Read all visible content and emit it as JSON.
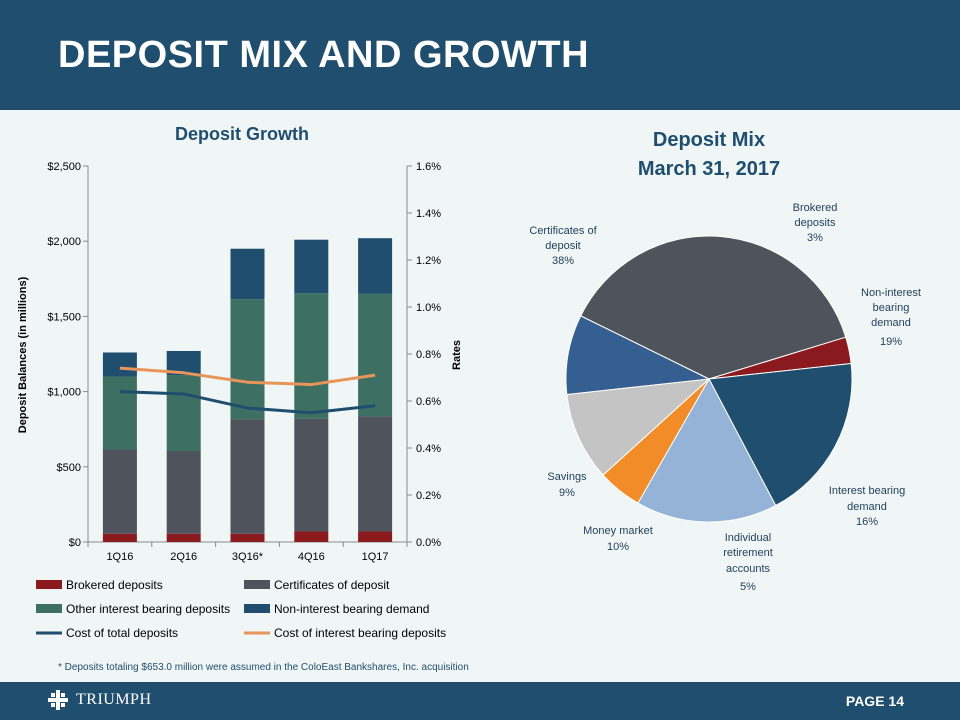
{
  "slide": {
    "title": "DEPOSIT MIX AND GROWTH",
    "page_label": "PAGE 14",
    "logo_text": "TRIUMPH",
    "footnote": "* Deposits totaling $653.0 million were assumed in the ColoEast Bankshares, Inc. acquisition"
  },
  "colors": {
    "header": "#1f4e6e",
    "brokered": "#8b1a1f",
    "cd": "#4f535c",
    "other_ib": "#3d7063",
    "nib": "#1f4e6e",
    "cost_total": "#1f4e6e",
    "cost_ib": "#e8955a",
    "ib_demand": "#95b3d7",
    "ira": "#f28c28",
    "money_market": "#c4c4c4",
    "savings": "#355f91"
  },
  "chart_data": [
    {
      "type": "bar",
      "subtype": "stacked-with-lines",
      "title": "Deposit Growth",
      "ylabel": "Deposit Balances (in millions)",
      "y2label": "Rates",
      "categories": [
        "1Q16",
        "2Q16",
        "3Q16*",
        "4Q16",
        "1Q17"
      ],
      "ylim": [
        0,
        2500
      ],
      "y_ticks": [
        0,
        500,
        1000,
        1500,
        2000,
        2500
      ],
      "y_tick_labels": [
        "$0",
        "$500",
        "$1,000",
        "$1,500",
        "$2,000",
        "$2,500"
      ],
      "y2lim": [
        0,
        1.6
      ],
      "y2_ticks": [
        0,
        0.2,
        0.4,
        0.6,
        0.8,
        1.0,
        1.2,
        1.4,
        1.6
      ],
      "y2_tick_labels": [
        "0.0%",
        "0.2%",
        "0.4%",
        "0.6%",
        "0.8%",
        "1.0%",
        "1.2%",
        "1.4%",
        "1.6%"
      ],
      "series": [
        {
          "name": "Brokered deposits",
          "kind": "bar",
          "color_key": "brokered",
          "values": [
            55,
            55,
            55,
            70,
            70
          ]
        },
        {
          "name": "Certificates of deposit",
          "kind": "bar",
          "color_key": "cd",
          "values": [
            560,
            550,
            760,
            750,
            765
          ]
        },
        {
          "name": "Other interest bearing deposits",
          "kind": "bar",
          "color_key": "other_ib",
          "values": [
            485,
            505,
            800,
            835,
            815
          ]
        },
        {
          "name": "Non-interest bearing demand",
          "kind": "bar",
          "color_key": "nib",
          "values": [
            160,
            160,
            335,
            355,
            370
          ]
        },
        {
          "name": "Cost of total deposits",
          "kind": "line",
          "axis": "y2",
          "color_key": "cost_total",
          "values": [
            0.64,
            0.63,
            0.57,
            0.55,
            0.58
          ]
        },
        {
          "name": "Cost of interest bearing deposits",
          "kind": "line",
          "axis": "y2",
          "color_key": "cost_ib",
          "values": [
            0.74,
            0.72,
            0.68,
            0.67,
            0.71
          ]
        }
      ],
      "legend": [
        "Brokered deposits",
        "Certificates of deposit",
        "Other interest bearing deposits",
        "Non-interest bearing demand",
        "Cost of total deposits",
        "Cost of interest bearing deposits"
      ]
    },
    {
      "type": "pie",
      "title": "Deposit Mix",
      "subtitle": "March 31, 2017",
      "slices": [
        {
          "name": "Certificates of deposit",
          "pct_label": "38%",
          "value": 38,
          "color_key": "cd"
        },
        {
          "name": "Brokered deposits",
          "pct_label": "3%",
          "value": 3,
          "color_key": "brokered"
        },
        {
          "name": "Non-interest bearing demand",
          "pct_label": "19%",
          "value": 19,
          "color_key": "nib"
        },
        {
          "name": "Interest bearing demand",
          "pct_label": "16%",
          "value": 16,
          "color_key": "ib_demand"
        },
        {
          "name": "Individual retirement accounts",
          "pct_label": "5%",
          "value": 5,
          "color_key": "ira"
        },
        {
          "name": "Money market",
          "pct_label": "10%",
          "value": 10,
          "color_key": "money_market"
        },
        {
          "name": "Savings",
          "pct_label": "9%",
          "value": 9,
          "color_key": "savings"
        }
      ]
    }
  ]
}
